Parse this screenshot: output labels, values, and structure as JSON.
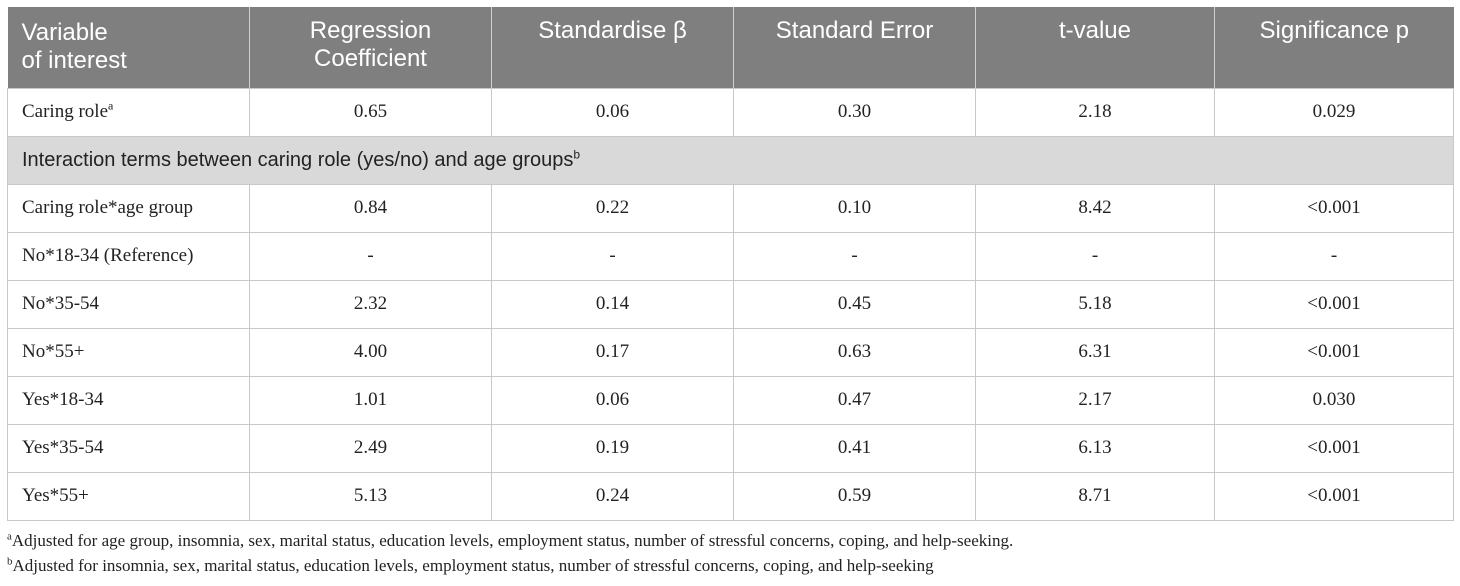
{
  "table": {
    "headers": [
      {
        "line1": "Variable",
        "line2": "of interest"
      },
      {
        "line1": "Regression",
        "line2": "Coefficient"
      },
      {
        "line1": "Standardise β",
        "line2": ""
      },
      {
        "line1": "Standard Error",
        "line2": ""
      },
      {
        "line1": "t-value",
        "line2": ""
      },
      {
        "line1": "Significance p",
        "line2": ""
      }
    ],
    "first_row": {
      "label": "Caring role",
      "label_sup": "a",
      "cells": [
        "0.65",
        "0.06",
        "0.30",
        "2.18",
        "0.029"
      ]
    },
    "section": {
      "text": "Interaction terms between caring role (yes/no) and age groups",
      "sup": "b"
    },
    "rows": [
      {
        "label": "Caring role*age group",
        "cells": [
          "0.84",
          "0.22",
          "0.10",
          "8.42",
          "<0.001"
        ]
      },
      {
        "label": "No*18-34 (Reference)",
        "cells": [
          "-",
          "-",
          "-",
          "-",
          "-"
        ]
      },
      {
        "label": "No*35-54",
        "cells": [
          "2.32",
          "0.14",
          "0.45",
          "5.18",
          "<0.001"
        ]
      },
      {
        "label": "No*55+",
        "cells": [
          "4.00",
          "0.17",
          "0.63",
          "6.31",
          "<0.001"
        ]
      },
      {
        "label": "Yes*18-34",
        "cells": [
          "1.01",
          "0.06",
          "0.47",
          "2.17",
          "0.030"
        ]
      },
      {
        "label": "Yes*35-54",
        "cells": [
          "2.49",
          "0.19",
          "0.41",
          "6.13",
          "<0.001"
        ]
      },
      {
        "label": "Yes*55+",
        "cells": [
          "5.13",
          "0.24",
          "0.59",
          "8.71",
          "<0.001"
        ]
      }
    ]
  },
  "footnotes": [
    {
      "mark": "a",
      "text": "Adjusted for age group, insomnia, sex, marital status, education levels, employment status, number of stressful concerns, coping, and help-seeking."
    },
    {
      "mark": "b",
      "text": "Adjusted for insomnia, sex, marital status, education levels, employment status, number of stressful concerns, coping, and help-seeking"
    }
  ],
  "colors": {
    "header_bg": "#7f7f7f",
    "section_bg": "#d9d9d9",
    "border": "#c8c8c8"
  }
}
